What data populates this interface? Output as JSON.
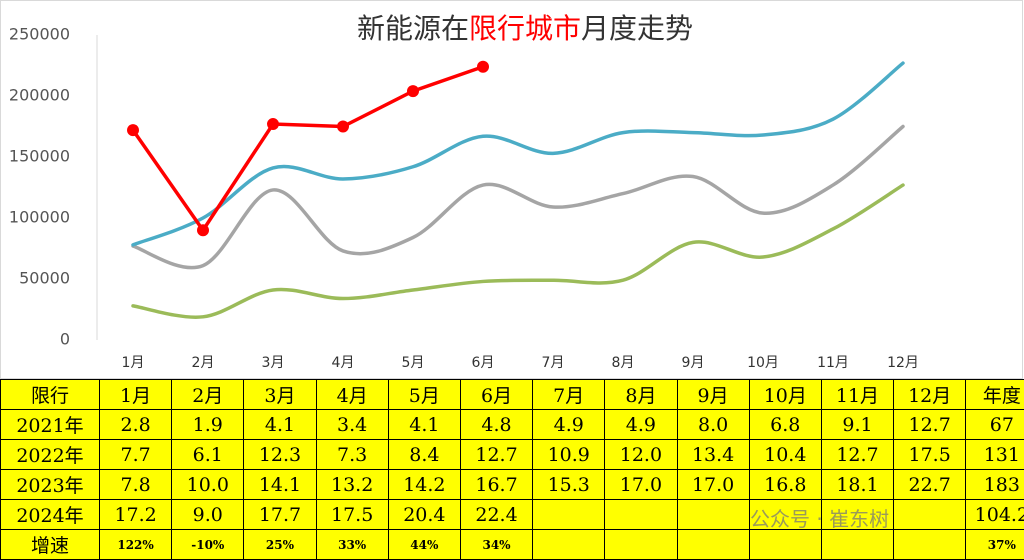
{
  "chart_data": {
    "type": "line",
    "title_parts": [
      {
        "text": "新能源在",
        "color": "#333333"
      },
      {
        "text": "限行城市",
        "color": "#ff0000"
      },
      {
        "text": "月度走势",
        "color": "#333333"
      }
    ],
    "categories": [
      "1月",
      "2月",
      "3月",
      "4月",
      "5月",
      "6月",
      "7月",
      "8月",
      "9月",
      "10月",
      "11月",
      "12月"
    ],
    "series": [
      {
        "color": "#9bbb59",
        "smooth": true,
        "values": [
          28000,
          19000,
          41000,
          34000,
          41000,
          48000,
          49000,
          49000,
          80000,
          68000,
          91000,
          127000
        ]
      },
      {
        "color": "#a5a5a5",
        "smooth": true,
        "values": [
          77000,
          61000,
          123000,
          73000,
          84000,
          127000,
          109000,
          120000,
          134000,
          104000,
          127000,
          175000
        ]
      },
      {
        "color": "#4bacc6",
        "smooth": true,
        "values": [
          78000,
          100000,
          141000,
          132000,
          142000,
          167000,
          153000,
          170000,
          170000,
          168000,
          181000,
          227000
        ]
      },
      {
        "color": "#ff0000",
        "smooth": false,
        "markers": true,
        "values": [
          172000,
          90000,
          177000,
          175000,
          204000,
          224000,
          null,
          null,
          null,
          null,
          null,
          null
        ]
      }
    ],
    "ylim": [
      0,
      250000
    ],
    "yticks": [
      0,
      50000,
      100000,
      150000,
      200000,
      250000
    ],
    "grid": false
  },
  "table": {
    "header": [
      "限行",
      "1月",
      "2月",
      "3月",
      "4月",
      "5月",
      "6月",
      "7月",
      "8月",
      "9月",
      "10月",
      "11月",
      "12月",
      "年度"
    ],
    "rows": [
      [
        "2021年",
        "2.8",
        "1.9",
        "4.1",
        "3.4",
        "4.1",
        "4.8",
        "4.9",
        "4.9",
        "8.0",
        "6.8",
        "9.1",
        "12.7",
        "67"
      ],
      [
        "2022年",
        "7.7",
        "6.1",
        "12.3",
        "7.3",
        "8.4",
        "12.7",
        "10.9",
        "12.0",
        "13.4",
        "10.4",
        "12.7",
        "17.5",
        "131"
      ],
      [
        "2023年",
        "7.8",
        "10.0",
        "14.1",
        "13.2",
        "14.2",
        "16.7",
        "15.3",
        "17.0",
        "17.0",
        "16.8",
        "18.1",
        "22.7",
        "183"
      ],
      [
        "2024年",
        "17.2",
        "9.0",
        "17.7",
        "17.5",
        "20.4",
        "22.4",
        null,
        null,
        null,
        null,
        null,
        null,
        "104.2"
      ],
      [
        "增速",
        "122%",
        "-10%",
        "25%",
        "33%",
        "44%",
        "34%",
        null,
        null,
        null,
        null,
        null,
        null,
        "37%"
      ]
    ]
  },
  "watermark": "公众号 · 崔东树"
}
